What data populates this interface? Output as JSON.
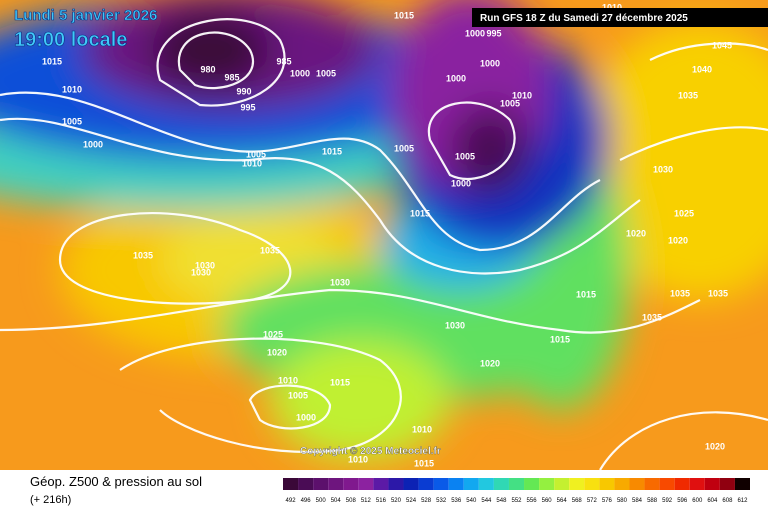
{
  "header": {
    "date": "Lundi 5 janvier 2026",
    "time": "19:00 locale",
    "run": "Run GFS 18 Z du Samedi 27 décembre 2025"
  },
  "footer": {
    "title": "Géop. Z500 & pression au sol",
    "lead": "(+ 216h)",
    "copyright": "Copyright © 2025 Meteociel.fr"
  },
  "colorbar": {
    "levels": [
      492,
      496,
      500,
      504,
      508,
      512,
      516,
      520,
      524,
      528,
      532,
      536,
      540,
      544,
      548,
      552,
      556,
      560,
      564,
      568,
      572,
      576,
      580,
      584,
      588,
      592,
      596,
      600,
      604,
      608,
      612
    ],
    "colors": [
      "#3a0838",
      "#4a0c55",
      "#5c106c",
      "#6e157e",
      "#80198e",
      "#8c22a0",
      "#5c1aa6",
      "#2c18a8",
      "#0c22b4",
      "#0a3cd2",
      "#0a5ae8",
      "#0a82f2",
      "#12a8f0",
      "#22c8e0",
      "#30d8b4",
      "#44e084",
      "#64e854",
      "#94f040",
      "#c4f030",
      "#f0f020",
      "#f8e010",
      "#f8c800",
      "#f8aa00",
      "#f88a00",
      "#f86a00",
      "#f84a00",
      "#f02a00",
      "#e01010",
      "#c00010",
      "#900010",
      "#100000"
    ]
  },
  "isobar_labels": [
    "1015",
    "1010",
    "1005",
    "1000",
    "980",
    "985",
    "990",
    "995",
    "985",
    "1000",
    "1005",
    "1005",
    "1010",
    "1015",
    "1015",
    "1000",
    "995",
    "1000",
    "1000",
    "1010",
    "1005",
    "1005",
    "1005",
    "1000",
    "1015",
    "1010",
    "1045",
    "1040",
    "1035",
    "1030",
    "1025",
    "1020",
    "1020",
    "1035",
    "1030",
    "1030",
    "1035",
    "1030",
    "1015",
    "1035",
    "1035",
    "1035",
    "1030",
    "1015",
    "1025",
    "1020",
    "1020",
    "1010",
    "1015",
    "1005",
    "1000",
    "1010",
    "1010",
    "1015",
    "1020"
  ]
}
